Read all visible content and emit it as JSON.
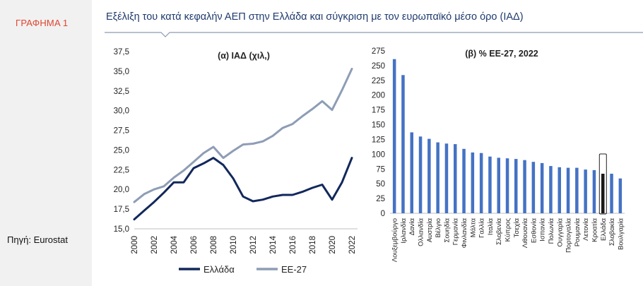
{
  "figure_label": "ΓΡΑΦΗΜΑ 1",
  "source": "Πηγή: Eurostat",
  "title": "Εξέλιξη του κατά κεφαλήν ΑΕΠ στην Ελλάδα και σύγκριση με τον ευρωπαϊκό μέσο όρο (ΙΑΔ)",
  "colors": {
    "greece": "#12285c",
    "eu27": "#8e9db5",
    "bars": "#4472c4",
    "title": "#1f3a6e",
    "label": "#e0452e"
  },
  "chart_data": [
    {
      "type": "line",
      "title": "(α) ΙΑΔ (χιλ,)",
      "xlabel": "",
      "ylabel": "",
      "ylim": [
        15.0,
        37.5
      ],
      "yticks": [
        "15,0",
        "17,5",
        "20,0",
        "22,5",
        "25,0",
        "27,5",
        "30,0",
        "32,5",
        "35,0",
        "37,5"
      ],
      "xticks": [
        "2000",
        "2002",
        "2004",
        "2006",
        "2008",
        "2010",
        "2012",
        "2014",
        "2016",
        "2018",
        "2020",
        "2022"
      ],
      "x": [
        2000,
        2001,
        2002,
        2003,
        2004,
        2005,
        2006,
        2007,
        2008,
        2009,
        2010,
        2011,
        2012,
        2013,
        2014,
        2015,
        2016,
        2017,
        2018,
        2019,
        2020,
        2021,
        2022
      ],
      "series": [
        {
          "name": "Ελλάδα",
          "values": [
            16.2,
            17.3,
            18.4,
            19.6,
            20.9,
            20.9,
            22.7,
            23.3,
            24.0,
            23.1,
            21.4,
            19.1,
            18.5,
            18.7,
            19.1,
            19.3,
            19.3,
            19.7,
            20.2,
            20.6,
            18.7,
            20.9,
            24.0
          ]
        },
        {
          "name": "ΕΕ-27",
          "values": [
            18.4,
            19.4,
            20.0,
            20.4,
            21.5,
            22.4,
            23.5,
            24.6,
            25.4,
            24.0,
            24.9,
            25.7,
            25.8,
            26.1,
            26.8,
            27.8,
            28.3,
            29.3,
            30.2,
            31.2,
            30.1,
            32.6,
            35.3
          ]
        }
      ],
      "legend_position": "bottom"
    },
    {
      "type": "bar",
      "title": "(β) % ΕΕ-27, 2022",
      "ylim": [
        0,
        275
      ],
      "yticks": [
        "0",
        "25",
        "50",
        "75",
        "100",
        "125",
        "150",
        "175",
        "200",
        "225",
        "250",
        "275"
      ],
      "categories": [
        "Λουξεμβούργο",
        "Ιρλανδία",
        "Δανία",
        "Ολλανδία",
        "Αυστρία",
        "Βέλγιο",
        "Σουηδία",
        "Γερμανία",
        "Φινλανδία",
        "Μάλτα",
        "Γαλλία",
        "Ιταλία",
        "Σλοβενία",
        "Κύπρος",
        "Τσεχία",
        "Λιθουανία",
        "Εσθονία",
        "Ισπανία",
        "Πολωνία",
        "Ουγγαρία",
        "Πορτογαλία",
        "Ρουμανία",
        "Λετονία",
        "Κροατία",
        "Ελλάδα",
        "Σλοβακία",
        "Βουλγαρία"
      ],
      "values": [
        261,
        234,
        137,
        130,
        126,
        120,
        118,
        117,
        109,
        103,
        102,
        96,
        94,
        93,
        92,
        90,
        87,
        85,
        80,
        78,
        77,
        77,
        74,
        73,
        67,
        67,
        59
      ],
      "highlight": "Ελλάδα"
    }
  ]
}
